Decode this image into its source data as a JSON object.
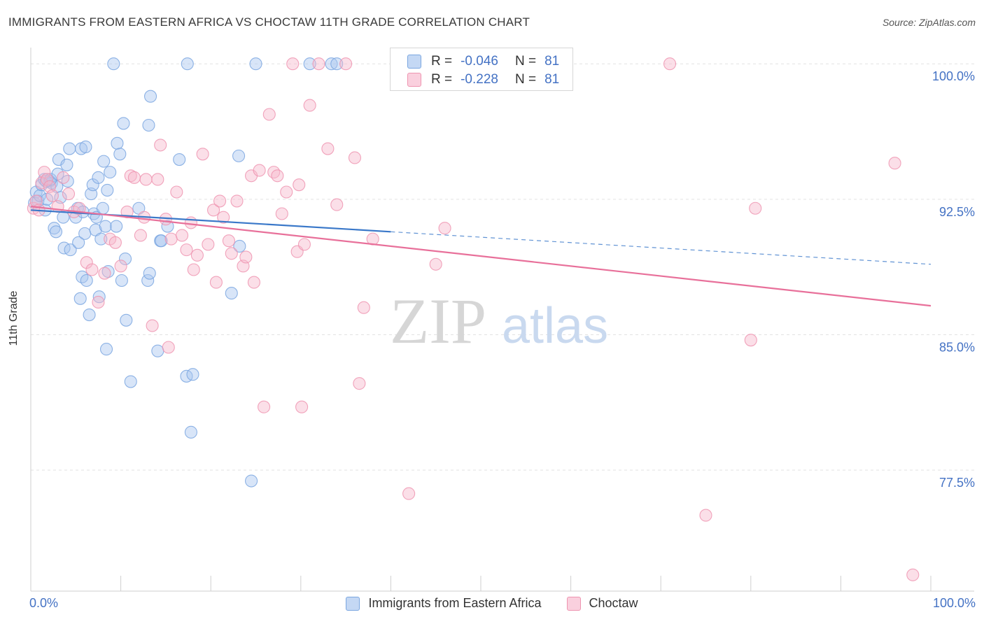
{
  "title": "IMMIGRANTS FROM EASTERN AFRICA VS CHOCTAW 11TH GRADE CORRELATION CHART",
  "source": "Source: ZipAtlas.com",
  "watermark": {
    "zip": "ZIP",
    "atlas": "atlas"
  },
  "colors": {
    "blue_fill": "#a9c6f0",
    "blue_stroke": "#7aa6e0",
    "blue_line": "#3a78c9",
    "pink_fill": "#f6b8cb",
    "pink_stroke": "#ee94b0",
    "pink_line": "#e8709a",
    "tick_text": "#4472c4",
    "grid": "#e2e2e2"
  },
  "legend_top": [
    {
      "r_label": "R =",
      "r_value": "-0.046",
      "n_label": "N =",
      "n_value": "81"
    },
    {
      "r_label": "R =",
      "r_value": "-0.228",
      "n_label": "N =",
      "n_value": "81"
    }
  ],
  "legend_bottom": [
    "Immigrants from Eastern Africa",
    "Choctaw"
  ],
  "chart_data": {
    "type": "scatter",
    "title": "IMMIGRANTS FROM EASTERN AFRICA VS CHOCTAW 11TH GRADE CORRELATION CHART",
    "xlabel": "",
    "ylabel": "11th Grade",
    "xlim": [
      0,
      100
    ],
    "ylim": [
      70.8,
      100.9
    ],
    "x_tick_labels": [
      "0.0%",
      "100.0%"
    ],
    "y_ticks": [
      100.0,
      92.5,
      85.0,
      77.5
    ],
    "y_tick_labels": [
      "100.0%",
      "92.5%",
      "85.0%",
      "77.5%"
    ],
    "grid": true,
    "series": [
      {
        "name": "Immigrants from Eastern Africa",
        "r": -0.046,
        "n": 81,
        "trend": {
          "x0": 0,
          "y0": 91.9,
          "x1": 40,
          "y1": 90.7,
          "dash_to_x": 100,
          "dash_to_y": 88.9
        },
        "points": [
          [
            0.4,
            92.3
          ],
          [
            0.6,
            92.9
          ],
          [
            0.8,
            92.4
          ],
          [
            1.0,
            92.7
          ],
          [
            1.2,
            93.3
          ],
          [
            1.5,
            93.6
          ],
          [
            1.6,
            91.9
          ],
          [
            1.8,
            92.5
          ],
          [
            2.1,
            93.5
          ],
          [
            2.3,
            93.4
          ],
          [
            2.6,
            90.9
          ],
          [
            2.8,
            90.7
          ],
          [
            2.9,
            93.2
          ],
          [
            3.1,
            94.7
          ],
          [
            3.3,
            92.6
          ],
          [
            3.6,
            91.5
          ],
          [
            3.7,
            89.8
          ],
          [
            4.0,
            94.4
          ],
          [
            4.1,
            93.5
          ],
          [
            4.3,
            95.3
          ],
          [
            4.4,
            89.7
          ],
          [
            5.0,
            91.5
          ],
          [
            5.2,
            92.0
          ],
          [
            5.3,
            90.1
          ],
          [
            5.5,
            87.0
          ],
          [
            5.6,
            95.3
          ],
          [
            5.7,
            88.2
          ],
          [
            6.0,
            90.6
          ],
          [
            6.1,
            95.4
          ],
          [
            6.2,
            88.0
          ],
          [
            6.5,
            86.1
          ],
          [
            6.7,
            92.8
          ],
          [
            6.9,
            93.3
          ],
          [
            7.0,
            91.7
          ],
          [
            7.2,
            90.8
          ],
          [
            7.3,
            91.5
          ],
          [
            7.5,
            93.7
          ],
          [
            7.6,
            87.1
          ],
          [
            7.8,
            90.3
          ],
          [
            8.0,
            92.0
          ],
          [
            8.1,
            94.6
          ],
          [
            8.3,
            91.0
          ],
          [
            8.4,
            84.2
          ],
          [
            8.5,
            93.0
          ],
          [
            8.6,
            88.5
          ],
          [
            8.8,
            94.0
          ],
          [
            9.2,
            100.0
          ],
          [
            9.5,
            91.0
          ],
          [
            9.6,
            95.6
          ],
          [
            9.9,
            95.0
          ],
          [
            10.1,
            88.0
          ],
          [
            10.3,
            96.7
          ],
          [
            10.5,
            89.2
          ],
          [
            10.6,
            85.8
          ],
          [
            11.1,
            82.4
          ],
          [
            13.1,
            96.6
          ],
          [
            13.0,
            88.0
          ],
          [
            13.2,
            88.4
          ],
          [
            13.3,
            98.2
          ],
          [
            14.1,
            84.1
          ],
          [
            14.4,
            90.2
          ],
          [
            14.5,
            90.2
          ],
          [
            15.2,
            91.0
          ],
          [
            16.5,
            94.7
          ],
          [
            17.3,
            82.7
          ],
          [
            17.4,
            100.0
          ],
          [
            18.0,
            82.8
          ],
          [
            17.8,
            79.6
          ],
          [
            22.3,
            87.3
          ],
          [
            23.1,
            94.9
          ],
          [
            23.2,
            89.9
          ],
          [
            24.5,
            76.9
          ],
          [
            25.0,
            100.0
          ],
          [
            31.0,
            100.0
          ],
          [
            33.4,
            100.0
          ],
          [
            34.0,
            100.0
          ],
          [
            1.7,
            93.5
          ],
          [
            2.2,
            93.6
          ],
          [
            3.0,
            93.9
          ],
          [
            12.0,
            92.0
          ],
          [
            5.8,
            91.8
          ]
        ]
      },
      {
        "name": "Choctaw",
        "r": -0.228,
        "n": 81,
        "trend": {
          "x0": 0,
          "y0": 92.1,
          "x1": 100,
          "y1": 86.6
        },
        "points": [
          [
            0.3,
            92.0
          ],
          [
            0.6,
            92.4
          ],
          [
            0.9,
            91.9
          ],
          [
            1.2,
            93.4
          ],
          [
            1.5,
            94.0
          ],
          [
            1.8,
            93.6
          ],
          [
            2.1,
            93.2
          ],
          [
            2.4,
            92.7
          ],
          [
            3.0,
            92.1
          ],
          [
            3.6,
            93.7
          ],
          [
            4.2,
            92.8
          ],
          [
            4.8,
            91.8
          ],
          [
            5.4,
            92.0
          ],
          [
            6.2,
            89.0
          ],
          [
            6.8,
            88.6
          ],
          [
            7.5,
            86.8
          ],
          [
            8.2,
            88.4
          ],
          [
            8.8,
            90.3
          ],
          [
            9.4,
            90.1
          ],
          [
            10.0,
            88.8
          ],
          [
            10.7,
            91.8
          ],
          [
            11.1,
            93.8
          ],
          [
            11.5,
            93.7
          ],
          [
            12.2,
            90.5
          ],
          [
            12.6,
            91.5
          ],
          [
            12.8,
            93.6
          ],
          [
            13.5,
            85.5
          ],
          [
            14.1,
            93.6
          ],
          [
            14.4,
            95.5
          ],
          [
            15.0,
            91.4
          ],
          [
            15.3,
            84.3
          ],
          [
            15.6,
            90.3
          ],
          [
            16.2,
            92.9
          ],
          [
            16.8,
            90.5
          ],
          [
            17.3,
            89.7
          ],
          [
            17.8,
            91.2
          ],
          [
            18.1,
            88.6
          ],
          [
            18.5,
            89.4
          ],
          [
            19.1,
            95.0
          ],
          [
            19.7,
            90.0
          ],
          [
            20.3,
            91.9
          ],
          [
            20.6,
            87.9
          ],
          [
            21.0,
            92.4
          ],
          [
            21.4,
            91.5
          ],
          [
            22.0,
            90.2
          ],
          [
            22.3,
            89.5
          ],
          [
            22.9,
            92.4
          ],
          [
            23.6,
            88.8
          ],
          [
            23.9,
            89.3
          ],
          [
            24.5,
            93.8
          ],
          [
            24.8,
            87.9
          ],
          [
            25.4,
            94.1
          ],
          [
            25.9,
            81.0
          ],
          [
            26.5,
            97.2
          ],
          [
            27.0,
            94.0
          ],
          [
            27.4,
            93.8
          ],
          [
            27.9,
            91.7
          ],
          [
            28.4,
            92.9
          ],
          [
            29.1,
            100.0
          ],
          [
            29.6,
            89.6
          ],
          [
            29.8,
            93.3
          ],
          [
            30.1,
            81.0
          ],
          [
            30.4,
            90.0
          ],
          [
            31.0,
            97.7
          ],
          [
            32.0,
            100.0
          ],
          [
            33.0,
            95.3
          ],
          [
            34.0,
            92.2
          ],
          [
            35.0,
            100.0
          ],
          [
            36.0,
            94.8
          ],
          [
            36.5,
            82.3
          ],
          [
            37.0,
            86.5
          ],
          [
            38.0,
            90.3
          ],
          [
            42.0,
            76.2
          ],
          [
            45.0,
            88.9
          ],
          [
            46.0,
            90.9
          ],
          [
            71.0,
            100.0
          ],
          [
            75.0,
            75.0
          ],
          [
            80.0,
            84.7
          ],
          [
            80.5,
            92.0
          ],
          [
            96.0,
            94.5
          ],
          [
            98.0,
            71.7
          ]
        ]
      }
    ]
  }
}
